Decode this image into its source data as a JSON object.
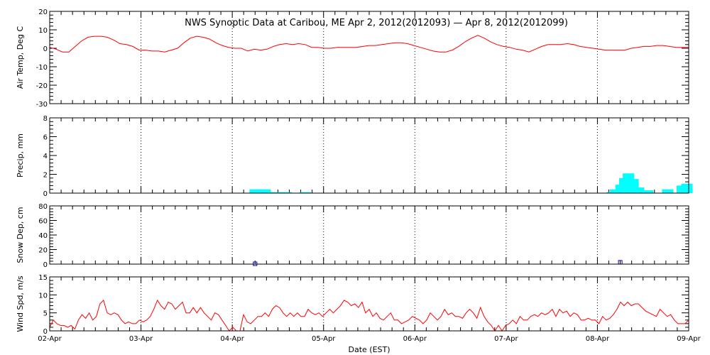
{
  "title": "NWS Synoptic Data at Caribou, ME   Apr  2, 2012(2012093) — Apr  8, 2012(2012099)",
  "x_axis": {
    "label": "Date (EST)",
    "ticks": [
      "02-Apr",
      "03-Apr",
      "04-Apr",
      "05-Apr",
      "06-Apr",
      "07-Apr",
      "08-Apr",
      "09-Apr"
    ]
  },
  "colors": {
    "temp": "#ff0000",
    "precip": "#00ffff",
    "snow": "#0000aa",
    "wind": "#ff0000",
    "frame": "#000000"
  },
  "chart_data": [
    {
      "type": "line",
      "ylabel": "Air Temp, Deg C",
      "ylim": [
        -30,
        20
      ],
      "yticks": [
        -30,
        -20,
        -10,
        0,
        10,
        20
      ],
      "grid": true,
      "series": [
        {
          "values": [
            0.5,
            -0.5,
            -2,
            -2,
            1,
            4,
            6,
            6.5,
            6.5,
            6,
            4.5,
            2.5,
            2,
            1,
            -1,
            -1,
            -1.5,
            -1.5,
            -2,
            -1,
            0,
            3,
            5.5,
            6.5,
            6,
            5,
            3,
            1.5,
            0.5,
            0,
            0,
            -1.5,
            -0.5,
            -1,
            -0.5,
            1,
            2,
            2.5,
            2,
            2.5,
            2,
            0.5,
            0.5,
            0,
            0,
            0.5,
            0.5,
            0.5,
            0.5,
            1,
            1.5,
            1.5,
            2,
            2.5,
            3,
            3,
            2.5,
            1.5,
            0.5,
            -0.5,
            -1.5,
            -2,
            -2,
            -1,
            1,
            3.5,
            5.5,
            7,
            5.5,
            3.5,
            2,
            1,
            0.5,
            -0.5,
            -1,
            -2,
            -0.5,
            1,
            2,
            2,
            2,
            2.5,
            2,
            1,
            0.5,
            0,
            -0.5,
            -1,
            -1,
            -1,
            -1,
            0,
            0.5,
            1,
            1,
            1.5,
            1.5,
            1,
            0.5,
            0.5,
            0.5
          ]
        }
      ]
    },
    {
      "type": "bar",
      "ylabel": "Precip, mm",
      "ylim": [
        0,
        8
      ],
      "yticks": [
        0,
        2,
        4,
        6,
        8
      ],
      "grid": true,
      "bar_width_hours": 3,
      "points": [
        {
          "t": 2.25,
          "v": 0.4
        },
        {
          "t": 2.36,
          "v": 0.4
        },
        {
          "t": 2.47,
          "v": 0.1
        },
        {
          "t": 2.59,
          "v": 0.1
        },
        {
          "t": 2.8,
          "v": 0.1
        },
        {
          "t": 6.16,
          "v": 0.1
        },
        {
          "t": 6.2,
          "v": 0.4
        },
        {
          "t": 6.26,
          "v": 0.9
        },
        {
          "t": 6.3,
          "v": 1.6
        },
        {
          "t": 6.34,
          "v": 2.1
        },
        {
          "t": 6.39,
          "v": 1.5
        },
        {
          "t": 6.45,
          "v": 0.6
        },
        {
          "t": 6.55,
          "v": 0.3
        },
        {
          "t": 6.77,
          "v": 0.4
        },
        {
          "t": 6.93,
          "v": 0.8
        },
        {
          "t": 6.98,
          "v": 1.0
        }
      ]
    },
    {
      "type": "scatter",
      "ylabel": "Snow Dep, cm",
      "ylim": [
        0,
        80
      ],
      "yticks": [
        0,
        20,
        40,
        60,
        80
      ],
      "grid": true,
      "points": [
        {
          "t": 2.25,
          "v": 0
        },
        {
          "t": 6.25,
          "v": 2
        }
      ]
    },
    {
      "type": "line",
      "ylabel": "Wind Spd, m/s",
      "ylim": [
        0,
        15
      ],
      "yticks": [
        0,
        5,
        10,
        15
      ],
      "grid": true,
      "series": [
        {
          "values": [
            1,
            3,
            2,
            1.5,
            1.5,
            1,
            1.5,
            0.5,
            3,
            4.5,
            3.5,
            5,
            3,
            4,
            7.5,
            8.5,
            5,
            4.5,
            5,
            4.5,
            3,
            2,
            2.5,
            2,
            2,
            3,
            2.5,
            3,
            4,
            6,
            8.5,
            7,
            6,
            8,
            7.5,
            6,
            7,
            8,
            5,
            5,
            6.5,
            5,
            6.5,
            5,
            4,
            3,
            5,
            4.5,
            3,
            1.5,
            0,
            1,
            0,
            0,
            4.5,
            2.5,
            2,
            3,
            4,
            4,
            5,
            4,
            6,
            7,
            6.5,
            5,
            4,
            5,
            4,
            5,
            4,
            4,
            6,
            5,
            4.5,
            5,
            4,
            5,
            6,
            5,
            6,
            7,
            8.5,
            8,
            7,
            7.5,
            6.5,
            8,
            5,
            6,
            4,
            5,
            3.5,
            3,
            4,
            5,
            3,
            3,
            2,
            2.5,
            3,
            4,
            3.5,
            3,
            2,
            3,
            5,
            4,
            3,
            4,
            6,
            4.5,
            5,
            4,
            4,
            3.5,
            5,
            6,
            5,
            3.5,
            6.5,
            4,
            2.5,
            1.5,
            0,
            1.5,
            0,
            1.5,
            2,
            3,
            2,
            4,
            3,
            3,
            4,
            4.5,
            4,
            5,
            4.5,
            5,
            6,
            4,
            6,
            5,
            5.5,
            4,
            5,
            4.5,
            3,
            3,
            3.5,
            3,
            3,
            2,
            4,
            3,
            3.5,
            4.5,
            6,
            8,
            7,
            8,
            7,
            7.5,
            7.5,
            6.5,
            5.5,
            5,
            4.5,
            4,
            6,
            5,
            4,
            4.5,
            3,
            2,
            2,
            2,
            3
          ]
        }
      ]
    }
  ]
}
